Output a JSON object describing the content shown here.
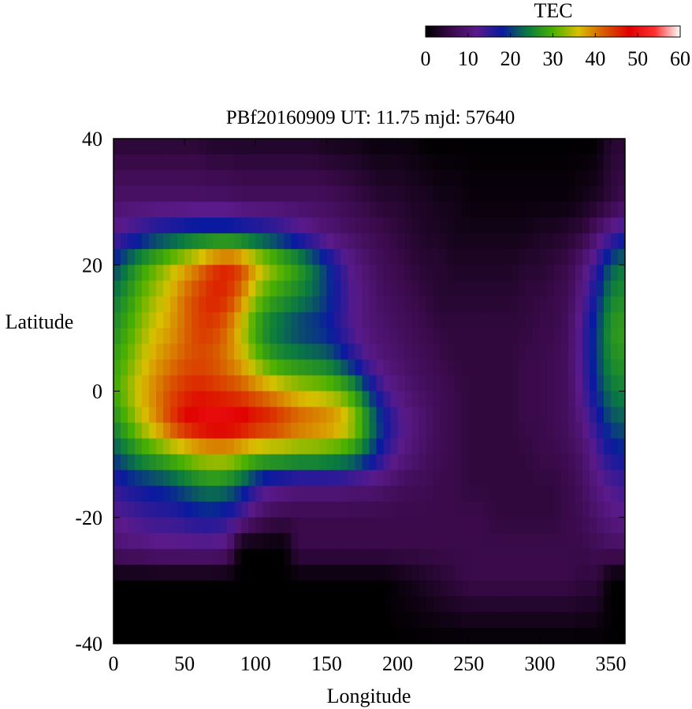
{
  "chart_data": {
    "type": "heatmap",
    "title": "PBf20160909  UT: 11.75  mjd: 57640",
    "xlabel": "Longitude",
    "ylabel": "Latitude",
    "xlim": [
      0,
      360
    ],
    "ylim": [
      -40,
      40
    ],
    "x_ticks": [
      "0",
      "50",
      "100",
      "150",
      "200",
      "250",
      "300",
      "350"
    ],
    "y_ticks": [
      "40",
      "20",
      "0",
      "-20",
      "-40"
    ],
    "grid": false,
    "colorbar": {
      "label": "TEC",
      "range": [
        0,
        60
      ],
      "ticks": [
        "0",
        "10",
        "20",
        "30",
        "40",
        "50",
        "60"
      ],
      "placement": "top-right",
      "colormap": "black-purple-blue-green-yellow-red-white"
    },
    "x": [
      0,
      10,
      20,
      30,
      40,
      50,
      60,
      70,
      80,
      90,
      100,
      110,
      120,
      130,
      140,
      150,
      160,
      170,
      180,
      190,
      200,
      210,
      220,
      230,
      240,
      250,
      260,
      270,
      280,
      290,
      300,
      310,
      320,
      330,
      340,
      350,
      360
    ],
    "y": [
      40,
      30,
      25,
      20,
      15,
      10,
      5,
      0,
      -5,
      -10,
      -15,
      -20,
      -25,
      -30,
      -40
    ],
    "z": [
      [
        4,
        4,
        4,
        4,
        4,
        4,
        4,
        3,
        3,
        3,
        3,
        3,
        3,
        3,
        3,
        2,
        2,
        2,
        1,
        1,
        1,
        1,
        0,
        0,
        0,
        0,
        0,
        0,
        0,
        0,
        0,
        0,
        0,
        0,
        0,
        4,
        4
      ],
      [
        9,
        9,
        9,
        9,
        9,
        9,
        9,
        9,
        9,
        8,
        8,
        8,
        8,
        8,
        8,
        8,
        7,
        6,
        5,
        4,
        4,
        3,
        3,
        2,
        2,
        1,
        1,
        1,
        1,
        1,
        1,
        1,
        1,
        2,
        3,
        5,
        7
      ],
      [
        12,
        14,
        16,
        18,
        19,
        20,
        21,
        21,
        21,
        20,
        19,
        18,
        16,
        14,
        12,
        10,
        9,
        8,
        7,
        6,
        5,
        4,
        3,
        3,
        2,
        2,
        2,
        2,
        2,
        2,
        3,
        3,
        4,
        5,
        9,
        13,
        16
      ],
      [
        20,
        24,
        28,
        31,
        34,
        37,
        40,
        44,
        46,
        44,
        38,
        34,
        31,
        28,
        24,
        20,
        15,
        11,
        9,
        7,
        6,
        5,
        4,
        4,
        3,
        3,
        3,
        3,
        3,
        4,
        4,
        5,
        6,
        10,
        15,
        22,
        24
      ],
      [
        24,
        27,
        31,
        34,
        37,
        41,
        44,
        46,
        45,
        40,
        33,
        29,
        27,
        25,
        23,
        20,
        16,
        12,
        10,
        8,
        7,
        6,
        5,
        4,
        4,
        4,
        4,
        4,
        4,
        5,
        5,
        6,
        7,
        12,
        18,
        25,
        26
      ],
      [
        26,
        29,
        33,
        36,
        38,
        41,
        44,
        44,
        41,
        35,
        28,
        24,
        22,
        20,
        19,
        18,
        15,
        12,
        10,
        9,
        8,
        7,
        6,
        5,
        5,
        5,
        5,
        5,
        5,
        5,
        6,
        6,
        8,
        14,
        20,
        27,
        28
      ],
      [
        28,
        31,
        35,
        38,
        40,
        42,
        43,
        42,
        40,
        37,
        32,
        28,
        26,
        25,
        24,
        23,
        20,
        16,
        12,
        10,
        9,
        8,
        7,
        6,
        5,
        5,
        5,
        5,
        5,
        6,
        6,
        7,
        8,
        14,
        20,
        26,
        27
      ],
      [
        29,
        33,
        37,
        40,
        43,
        45,
        46,
        45,
        44,
        43,
        41,
        39,
        37,
        35,
        34,
        33,
        31,
        27,
        20,
        14,
        11,
        9,
        8,
        7,
        6,
        5,
        5,
        5,
        5,
        6,
        6,
        7,
        8,
        13,
        19,
        24,
        25
      ],
      [
        26,
        30,
        35,
        39,
        44,
        48,
        50,
        51,
        51,
        50,
        48,
        47,
        45,
        43,
        42,
        41,
        39,
        34,
        26,
        19,
        14,
        11,
        9,
        7,
        6,
        5,
        5,
        5,
        5,
        6,
        6,
        7,
        8,
        11,
        16,
        21,
        22
      ],
      [
        21,
        24,
        27,
        29,
        31,
        33,
        35,
        36,
        36,
        34,
        32,
        31,
        31,
        30,
        30,
        29,
        28,
        26,
        21,
        16,
        12,
        10,
        8,
        7,
        6,
        5,
        5,
        5,
        5,
        5,
        6,
        6,
        7,
        9,
        13,
        17,
        18
      ],
      [
        15,
        17,
        18,
        19,
        20,
        22,
        24,
        25,
        24,
        21,
        16,
        13,
        12,
        11,
        11,
        11,
        11,
        10,
        10,
        9,
        8,
        7,
        7,
        6,
        6,
        5,
        5,
        5,
        5,
        5,
        5,
        5,
        6,
        8,
        11,
        13,
        14
      ],
      [
        12,
        13,
        14,
        15,
        15,
        16,
        17,
        17,
        16,
        13,
        9,
        7,
        6,
        6,
        6,
        6,
        6,
        6,
        6,
        6,
        6,
        6,
        6,
        6,
        6,
        6,
        6,
        5,
        5,
        5,
        5,
        5,
        6,
        7,
        9,
        11,
        12
      ],
      [
        9,
        10,
        10,
        11,
        11,
        11,
        11,
        11,
        10,
        0,
        0,
        0,
        0,
        6,
        6,
        6,
        6,
        6,
        6,
        6,
        6,
        6,
        6,
        6,
        6,
        6,
        6,
        6,
        6,
        6,
        6,
        6,
        6,
        6,
        7,
        8,
        8
      ],
      [
        0,
        0,
        0,
        0,
        0,
        0,
        0,
        0,
        0,
        0,
        0,
        0,
        0,
        0,
        0,
        0,
        0,
        0,
        0,
        0,
        1,
        2,
        3,
        4,
        5,
        6,
        6,
        6,
        6,
        6,
        6,
        6,
        6,
        5,
        5,
        0,
        0
      ],
      [
        0,
        0,
        0,
        0,
        0,
        0,
        0,
        0,
        0,
        0,
        0,
        0,
        0,
        0,
        0,
        0,
        0,
        0,
        0,
        0,
        0,
        0,
        0,
        0,
        0,
        0,
        0,
        0,
        0,
        0,
        0,
        0,
        0,
        0,
        0,
        0,
        0
      ]
    ]
  }
}
